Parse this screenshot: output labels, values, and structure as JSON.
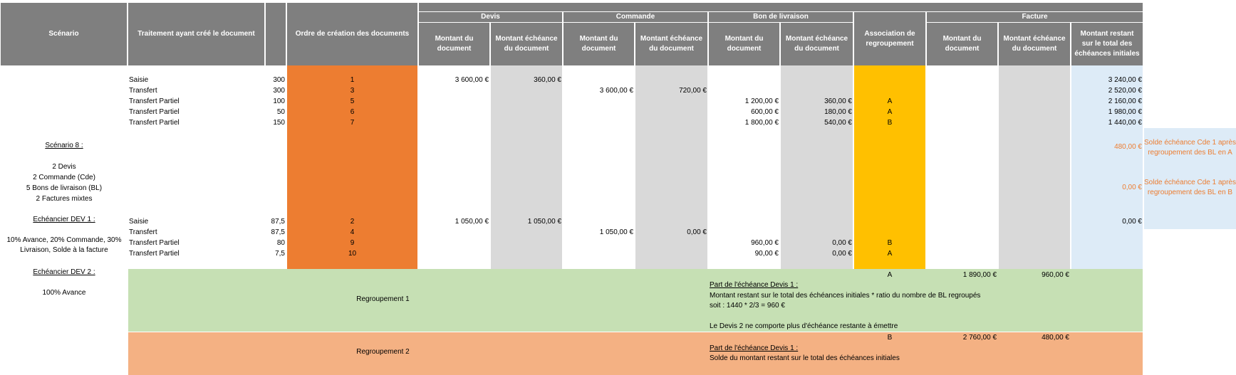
{
  "headers": {
    "scenario": "Scénario",
    "traitement": "Traitement ayant créé le document",
    "ordre": "Ordre de création des documents",
    "devis": "Devis",
    "commande": "Commande",
    "bl": "Bon de livraison",
    "facture": "Facture",
    "montant_doc": "Montant du document",
    "montant_ech": "Montant échéance du document",
    "association": "Association de regroupement",
    "montant_restant": "Montant restant sur le total des échéances initiales"
  },
  "scenario_text": {
    "title": "Scénario 8 :",
    "l1": "2 Devis",
    "l2": "2 Commande (Cde)",
    "l3": "5 Bons de livraison (BL)",
    "l4": "2 Factures mixtes",
    "ech1_title": "Echéancier DEV 1 :",
    "ech1_l1": "10% Avance, 20% Commande, 30%",
    "ech1_l2": "Livraison, Solde à la facture",
    "ech2_title": "Echéancier DEV 2 :",
    "ech2_l1": "100% Avance"
  },
  "rows": [
    {
      "traitement": "Saisie",
      "qty": "300",
      "ordre": "1",
      "devis_doc": "3 600,00 €",
      "devis_ech": "360,00 €",
      "cmd_doc": "",
      "cmd_ech": "",
      "bl_doc": "",
      "bl_ech": "",
      "assoc": "",
      "restant": "3 240,00 €"
    },
    {
      "traitement": "Transfert",
      "qty": "300",
      "ordre": "3",
      "devis_doc": "",
      "devis_ech": "",
      "cmd_doc": "3 600,00 €",
      "cmd_ech": "720,00 €",
      "bl_doc": "",
      "bl_ech": "",
      "assoc": "",
      "restant": "2 520,00 €"
    },
    {
      "traitement": "Transfert Partiel",
      "qty": "100",
      "ordre": "5",
      "devis_doc": "",
      "devis_ech": "",
      "cmd_doc": "",
      "cmd_ech": "",
      "bl_doc": "1 200,00 €",
      "bl_ech": "360,00 €",
      "assoc": "A",
      "restant": "2 160,00 €"
    },
    {
      "traitement": "Transfert Partiel",
      "qty": "50",
      "ordre": "6",
      "devis_doc": "",
      "devis_ech": "",
      "cmd_doc": "",
      "cmd_ech": "",
      "bl_doc": "600,00 €",
      "bl_ech": "180,00 €",
      "assoc": "A",
      "restant": "1 980,00 €"
    },
    {
      "traitement": "Transfert Partiel",
      "qty": "150",
      "ordre": "7",
      "devis_doc": "",
      "devis_ech": "",
      "cmd_doc": "",
      "cmd_ech": "",
      "bl_doc": "1 800,00 €",
      "bl_ech": "540,00 €",
      "assoc": "B",
      "restant": "1 440,00 €"
    },
    {
      "traitement": "Saisie",
      "qty": "87,5",
      "ordre": "2",
      "devis_doc": "1 050,00 €",
      "devis_ech": "1 050,00 €",
      "cmd_doc": "",
      "cmd_ech": "",
      "bl_doc": "",
      "bl_ech": "",
      "assoc": "",
      "restant": "0,00 €"
    },
    {
      "traitement": "Transfert",
      "qty": "87,5",
      "ordre": "4",
      "devis_doc": "",
      "devis_ech": "",
      "cmd_doc": "1 050,00 €",
      "cmd_ech": "0,00 €",
      "bl_doc": "",
      "bl_ech": "",
      "assoc": "",
      "restant": ""
    },
    {
      "traitement": "Transfert Partiel",
      "qty": "80",
      "ordre": "9",
      "devis_doc": "",
      "devis_ech": "",
      "cmd_doc": "",
      "cmd_ech": "",
      "bl_doc": "960,00 €",
      "bl_ech": "0,00 €",
      "assoc": "B",
      "restant": ""
    },
    {
      "traitement": "Transfert Partiel",
      "qty": "7,5",
      "ordre": "10",
      "devis_doc": "",
      "devis_ech": "",
      "cmd_doc": "",
      "cmd_ech": "",
      "bl_doc": "90,00 €",
      "bl_ech": "0,00 €",
      "assoc": "A",
      "restant": ""
    }
  ],
  "soldes": {
    "a_value": "480,00 €",
    "a_l1": "Solde échéance Cde 1 après",
    "a_l2": "regroupement des BL en A",
    "b_value": "0,00 €",
    "b_l1": "Solde échéance Cde 1 après",
    "b_l2": "regroupement des BL en B"
  },
  "regroupement1": {
    "label": "Regroupement 1",
    "assoc": "A",
    "fact_doc": "1 890,00 €",
    "fact_ech": "960,00 €",
    "part_title": "Part de l'échéance Devis 1 :",
    "l1": "Montant restant sur le total des échéances initiales * ratio du nombre de BL regroupés",
    "l2": "soit : 1440 * 2/3 = 960 €",
    "l3": "Le Devis 2 ne comporte plus d'échéance restante à émettre"
  },
  "regroupement2": {
    "label": "Regroupement 2",
    "assoc": "B",
    "fact_doc": "2 760,00 €",
    "fact_ech": "480,00 €",
    "part_title": "Part de l'échéance Devis 1 :",
    "l1": "Solde du montant restant sur le total des échéances initiales"
  }
}
